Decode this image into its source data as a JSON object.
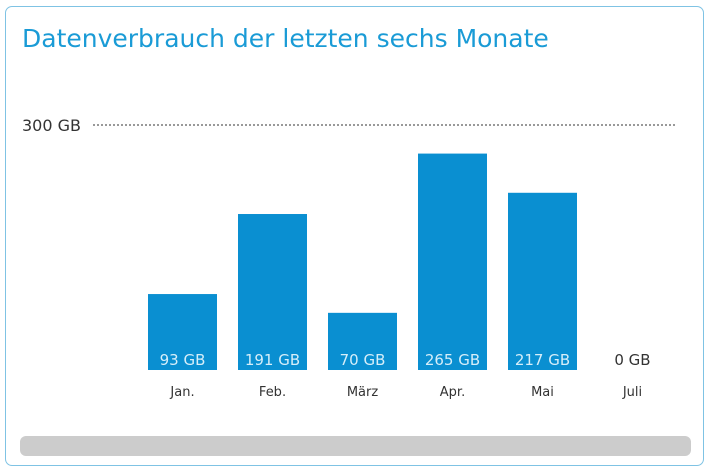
{
  "chart_data": {
    "type": "bar",
    "title": "Datenverbrauch der letzten sechs Monate",
    "max_label": "300 GB",
    "ylim": [
      0,
      300
    ],
    "categories": [
      "Jan.",
      "Feb.",
      "März",
      "Apr.",
      "Mai",
      "Juli"
    ],
    "values": [
      93,
      191,
      70,
      265,
      217,
      0
    ],
    "value_labels": [
      "93 GB",
      "191 GB",
      "70 GB",
      "265 GB",
      "217 GB",
      "0 GB"
    ],
    "bar_color": "#0a8fd1",
    "label_color_inside": "#d6eef9",
    "label_color_outside": "#333333",
    "reference_line": "dotted",
    "grid": false
  }
}
